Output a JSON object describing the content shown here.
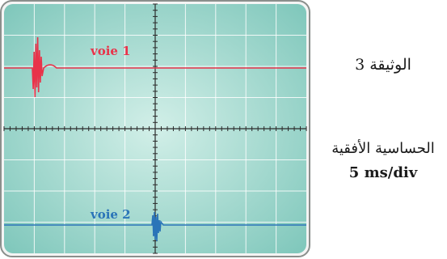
{
  "document": {
    "label": "الوثيقة 3",
    "horizontal_sensitivity_label": "الحساسية الأفقية",
    "horizontal_sensitivity_value": "5 ms/div"
  },
  "channels": [
    {
      "label": "voie 1",
      "color": "#e8334a"
    },
    {
      "label": "voie 2",
      "color": "#2a74b8"
    }
  ],
  "colors": {
    "screen_center": "#d2efe8",
    "screen_edge": "#7fc7bb",
    "bezel": "#8a8f8c",
    "grid": "#ffffff",
    "axis": "#2b2b2b"
  },
  "screen": {
    "divisions_x": 10,
    "divisions_y": 8
  }
}
